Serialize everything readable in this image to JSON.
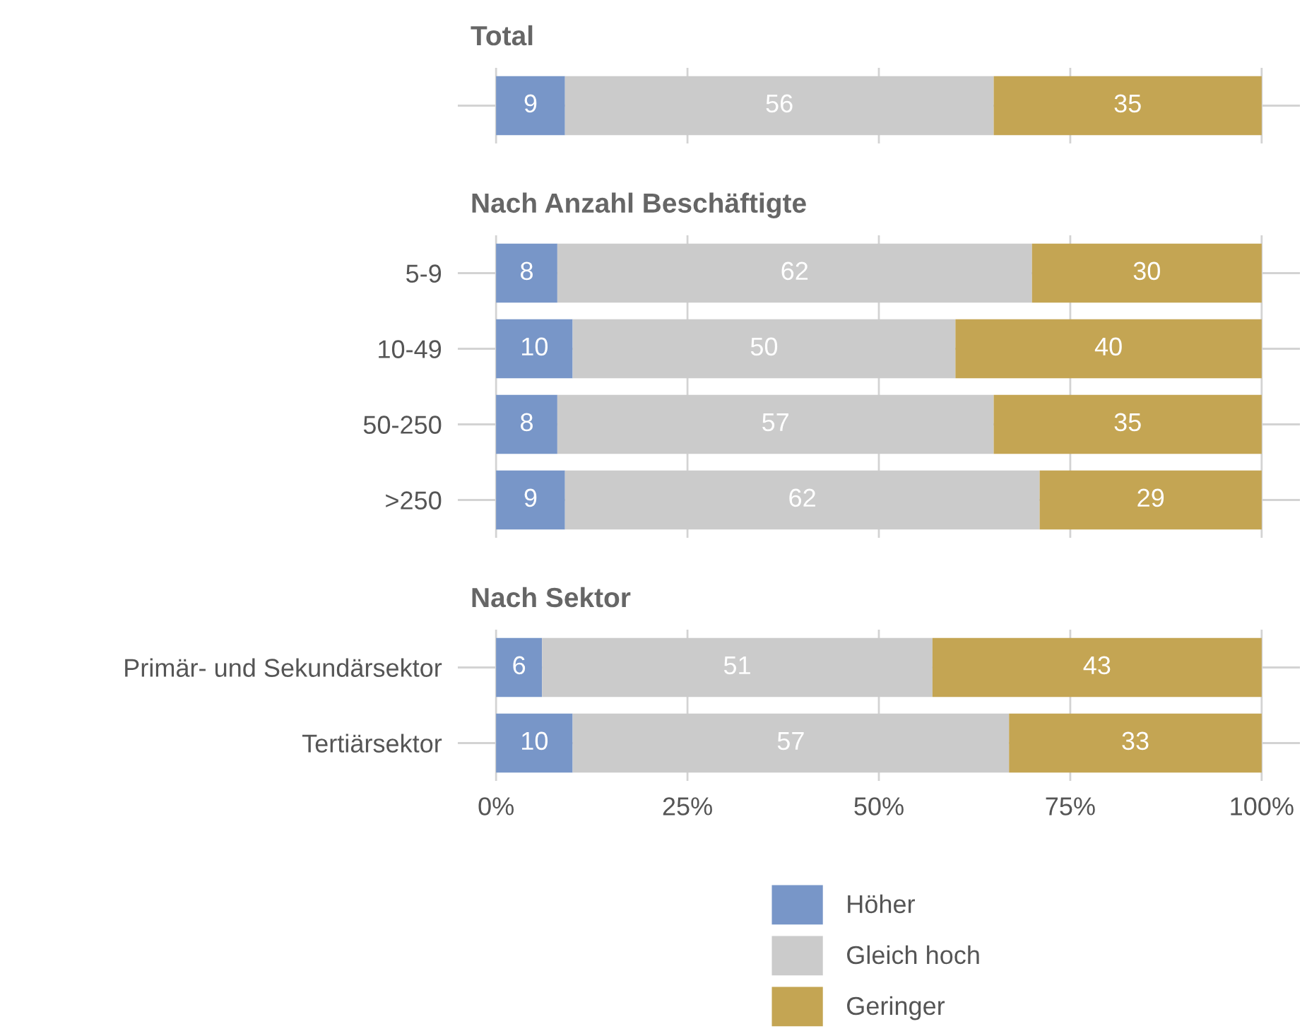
{
  "chart_data": [
    {
      "type": "bar",
      "orientation": "horizontal",
      "stacked": true,
      "title": "Total",
      "categories": [
        null
      ],
      "xlim": [
        -5,
        105
      ],
      "xticks": [
        {
          "value": 0,
          "label": null
        },
        {
          "value": 25,
          "label": null
        },
        {
          "value": 50,
          "label": null
        },
        {
          "value": 75,
          "label": null
        },
        {
          "value": 100,
          "label": null
        }
      ],
      "grid": true,
      "data_labels": true,
      "tick_labels": false,
      "series": [
        {
          "color": "#7896c8",
          "values": [
            9
          ]
        },
        {
          "color": "#cbcbcb",
          "values": [
            56
          ]
        },
        {
          "color": "#c4a553",
          "values": [
            35
          ]
        }
      ]
    },
    {
      "type": "bar",
      "orientation": "horizontal",
      "stacked": true,
      "title": "Nach Anzahl Beschäftigte",
      "categories": [
        "5-9",
        "10-49",
        "50-250",
        ">250"
      ],
      "xlim": [
        -5,
        105
      ],
      "xticks": [
        {
          "value": 0,
          "label": null
        },
        {
          "value": 25,
          "label": null
        },
        {
          "value": 50,
          "label": null
        },
        {
          "value": 75,
          "label": null
        },
        {
          "value": 100,
          "label": null
        }
      ],
      "grid": true,
      "data_labels": true,
      "tick_labels": "y",
      "series": [
        {
          "color": "#7896c8",
          "values": [
            8,
            10,
            8,
            9
          ]
        },
        {
          "color": "#cbcbcb",
          "values": [
            62,
            50,
            57,
            62
          ]
        },
        {
          "color": "#c4a553",
          "values": [
            30,
            40,
            35,
            29
          ]
        }
      ]
    },
    {
      "type": "bar",
      "orientation": "horizontal",
      "stacked": true,
      "title": "Nach Sektor",
      "categories": [
        "Primär- und Sekundärsektor",
        "Tertiärsektor"
      ],
      "xlim": [
        -5,
        105
      ],
      "xticks": [
        {
          "value": 0,
          "label": "0%"
        },
        {
          "value": 25,
          "label": "25%"
        },
        {
          "value": 50,
          "label": "50%"
        },
        {
          "value": 75,
          "label": "75%"
        },
        {
          "value": 100,
          "label": "100%"
        }
      ],
      "grid": true,
      "data_labels": true,
      "legend": "bottom",
      "series": [
        {
          "name": "Höher",
          "color": "#7896c8",
          "values": [
            6,
            10
          ]
        },
        {
          "name": "Gleich hoch",
          "color": "#cbcbcb",
          "values": [
            51,
            57
          ]
        },
        {
          "name": "Geringer",
          "color": "#c4a553",
          "values": [
            43,
            33
          ]
        }
      ]
    }
  ]
}
